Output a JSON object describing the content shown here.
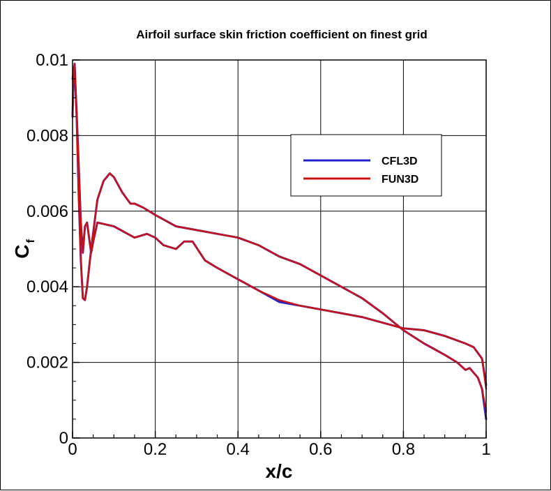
{
  "chart_data": {
    "type": "line",
    "title": "Airfoil surface skin friction coefficient on finest grid",
    "xlabel": "x/c",
    "ylabel_main": "C",
    "ylabel_sub": "f",
    "xlim": [
      0,
      1
    ],
    "ylim": [
      0,
      0.01
    ],
    "xticks": [
      0,
      0.2,
      0.4,
      0.6,
      0.8,
      1
    ],
    "xtick_labels": [
      "0",
      "0.2",
      "0.4",
      "0.6",
      "0.8",
      "1"
    ],
    "yticks": [
      0,
      0.002,
      0.004,
      0.006,
      0.008,
      0.01
    ],
    "ytick_labels": [
      "0",
      "0.002",
      "0.004",
      "0.006",
      "0.008",
      "0.01"
    ],
    "grid": true,
    "legend_position": "top-right",
    "series": [
      {
        "name": "CFL3D",
        "color": "#2222cc",
        "curves": [
          [
            [
              0.0,
              0.0085
            ],
            [
              0.003,
              0.0098
            ],
            [
              0.006,
              0.0095
            ],
            [
              0.01,
              0.0086
            ],
            [
              0.015,
              0.0072
            ],
            [
              0.02,
              0.0057
            ],
            [
              0.025,
              0.0049
            ],
            [
              0.03,
              0.0056
            ],
            [
              0.035,
              0.0057
            ],
            [
              0.04,
              0.0053
            ],
            [
              0.045,
              0.0049
            ],
            [
              0.05,
              0.0052
            ],
            [
              0.06,
              0.0057
            ],
            [
              0.08,
              0.00565
            ],
            [
              0.1,
              0.0056
            ],
            [
              0.15,
              0.0053
            ],
            [
              0.18,
              0.0054
            ],
            [
              0.2,
              0.0053
            ],
            [
              0.22,
              0.0051
            ],
            [
              0.25,
              0.005
            ],
            [
              0.27,
              0.0052
            ],
            [
              0.29,
              0.0052
            ],
            [
              0.32,
              0.0047
            ],
            [
              0.35,
              0.0045
            ],
            [
              0.4,
              0.0042
            ],
            [
              0.45,
              0.0039
            ],
            [
              0.5,
              0.0036
            ],
            [
              0.55,
              0.0035
            ],
            [
              0.6,
              0.0034
            ],
            [
              0.65,
              0.0033
            ],
            [
              0.7,
              0.0032
            ],
            [
              0.75,
              0.00305
            ],
            [
              0.8,
              0.0029
            ],
            [
              0.85,
              0.00285
            ],
            [
              0.9,
              0.0027
            ],
            [
              0.95,
              0.0025
            ],
            [
              0.97,
              0.0024
            ],
            [
              0.99,
              0.0021
            ],
            [
              1.0,
              0.0014
            ]
          ],
          [
            [
              0.0,
              0.0095
            ],
            [
              0.005,
              0.0099
            ],
            [
              0.01,
              0.0085
            ],
            [
              0.015,
              0.0064
            ],
            [
              0.02,
              0.0047
            ],
            [
              0.025,
              0.0037
            ],
            [
              0.03,
              0.00365
            ],
            [
              0.035,
              0.004
            ],
            [
              0.045,
              0.005
            ],
            [
              0.06,
              0.0063
            ],
            [
              0.075,
              0.0068
            ],
            [
              0.09,
              0.007
            ],
            [
              0.1,
              0.0069
            ],
            [
              0.12,
              0.0065
            ],
            [
              0.14,
              0.0062
            ],
            [
              0.15,
              0.0062
            ],
            [
              0.17,
              0.0061
            ],
            [
              0.2,
              0.0059
            ],
            [
              0.25,
              0.0056
            ],
            [
              0.3,
              0.0055
            ],
            [
              0.35,
              0.0054
            ],
            [
              0.4,
              0.0053
            ],
            [
              0.45,
              0.0051
            ],
            [
              0.5,
              0.0048
            ],
            [
              0.55,
              0.0046
            ],
            [
              0.6,
              0.0043
            ],
            [
              0.65,
              0.004
            ],
            [
              0.7,
              0.0037
            ],
            [
              0.75,
              0.0033
            ],
            [
              0.8,
              0.00285
            ],
            [
              0.85,
              0.0025
            ],
            [
              0.9,
              0.0022
            ],
            [
              0.93,
              0.002
            ],
            [
              0.95,
              0.0018
            ],
            [
              0.96,
              0.00185
            ],
            [
              0.98,
              0.0016
            ],
            [
              0.99,
              0.0013
            ],
            [
              1.0,
              0.0005
            ]
          ]
        ]
      },
      {
        "name": "FUN3D",
        "color": "#cc1111",
        "curves": [
          [
            [
              0.0,
              0.0085
            ],
            [
              0.003,
              0.0098
            ],
            [
              0.006,
              0.0095
            ],
            [
              0.01,
              0.0086
            ],
            [
              0.015,
              0.0072
            ],
            [
              0.02,
              0.0057
            ],
            [
              0.025,
              0.0049
            ],
            [
              0.03,
              0.0056
            ],
            [
              0.035,
              0.0057
            ],
            [
              0.04,
              0.0053
            ],
            [
              0.045,
              0.0049
            ],
            [
              0.05,
              0.0052
            ],
            [
              0.06,
              0.0057
            ],
            [
              0.08,
              0.00565
            ],
            [
              0.1,
              0.0056
            ],
            [
              0.15,
              0.0053
            ],
            [
              0.18,
              0.0054
            ],
            [
              0.2,
              0.0053
            ],
            [
              0.22,
              0.0051
            ],
            [
              0.25,
              0.005
            ],
            [
              0.27,
              0.0052
            ],
            [
              0.29,
              0.0052
            ],
            [
              0.32,
              0.0047
            ],
            [
              0.35,
              0.0045
            ],
            [
              0.4,
              0.0042
            ],
            [
              0.45,
              0.0039
            ],
            [
              0.5,
              0.00365
            ],
            [
              0.55,
              0.0035
            ],
            [
              0.6,
              0.0034
            ],
            [
              0.65,
              0.0033
            ],
            [
              0.7,
              0.0032
            ],
            [
              0.75,
              0.00305
            ],
            [
              0.8,
              0.0029
            ],
            [
              0.85,
              0.00285
            ],
            [
              0.9,
              0.0027
            ],
            [
              0.95,
              0.0025
            ],
            [
              0.97,
              0.0024
            ],
            [
              0.99,
              0.0021
            ],
            [
              1.0,
              0.0013
            ]
          ],
          [
            [
              0.0,
              0.0095
            ],
            [
              0.005,
              0.0099
            ],
            [
              0.01,
              0.0085
            ],
            [
              0.015,
              0.0064
            ],
            [
              0.02,
              0.0047
            ],
            [
              0.025,
              0.0037
            ],
            [
              0.03,
              0.00365
            ],
            [
              0.035,
              0.004
            ],
            [
              0.045,
              0.005
            ],
            [
              0.06,
              0.0063
            ],
            [
              0.075,
              0.0068
            ],
            [
              0.09,
              0.007
            ],
            [
              0.1,
              0.0069
            ],
            [
              0.12,
              0.0065
            ],
            [
              0.14,
              0.0062
            ],
            [
              0.15,
              0.0062
            ],
            [
              0.17,
              0.0061
            ],
            [
              0.2,
              0.0059
            ],
            [
              0.25,
              0.0056
            ],
            [
              0.3,
              0.0055
            ],
            [
              0.35,
              0.0054
            ],
            [
              0.4,
              0.0053
            ],
            [
              0.45,
              0.0051
            ],
            [
              0.5,
              0.0048
            ],
            [
              0.55,
              0.0046
            ],
            [
              0.6,
              0.0043
            ],
            [
              0.65,
              0.004
            ],
            [
              0.7,
              0.0037
            ],
            [
              0.75,
              0.0033
            ],
            [
              0.8,
              0.00285
            ],
            [
              0.85,
              0.0025
            ],
            [
              0.9,
              0.0022
            ],
            [
              0.93,
              0.002
            ],
            [
              0.95,
              0.0018
            ],
            [
              0.96,
              0.00185
            ],
            [
              0.98,
              0.0016
            ],
            [
              0.99,
              0.0013
            ],
            [
              1.0,
              0.0007
            ]
          ]
        ]
      }
    ]
  }
}
